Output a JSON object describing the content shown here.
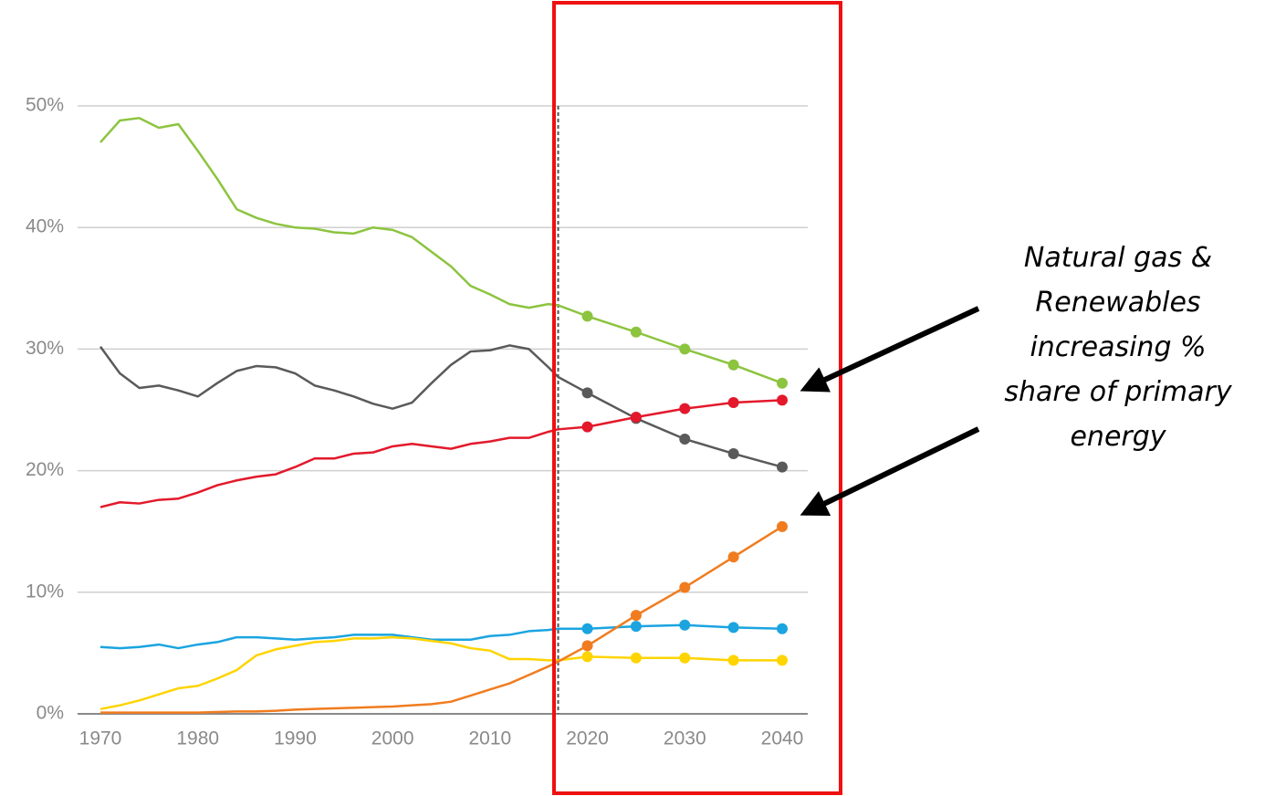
{
  "chart_data": {
    "type": "line",
    "x": [
      1970,
      1972,
      1974,
      1976,
      1978,
      1980,
      1982,
      1984,
      1986,
      1988,
      1990,
      1992,
      1994,
      1996,
      1998,
      2000,
      2002,
      2004,
      2006,
      2008,
      2010,
      2012,
      2014,
      2016,
      2017,
      2020,
      2025,
      2030,
      2035,
      2040
    ],
    "series": [
      {
        "color": "#8cc43f",
        "values": [
          47,
          48.8,
          49,
          48.2,
          48.5,
          46.3,
          44,
          41.5,
          40.8,
          40.3,
          40,
          39.9,
          39.6,
          39.5,
          40,
          39.8,
          39.2,
          38,
          36.8,
          35.2,
          34.5,
          33.7,
          33.4,
          33.7,
          33.6,
          32.7,
          31.4,
          30,
          28.7,
          27.2
        ]
      },
      {
        "color": "#5a5a5a",
        "values": [
          30.2,
          28,
          26.8,
          27,
          26.6,
          26.1,
          27.2,
          28.2,
          28.6,
          28.5,
          28,
          27,
          26.6,
          26.1,
          25.5,
          25.1,
          25.6,
          27.2,
          28.7,
          29.8,
          29.9,
          30.3,
          30,
          28.5,
          27.7,
          26.4,
          24.3,
          22.6,
          21.4,
          20.3
        ]
      },
      {
        "color": "#e3192b",
        "values": [
          17,
          17.4,
          17.3,
          17.6,
          17.7,
          18.2,
          18.8,
          19.2,
          19.5,
          19.7,
          20.3,
          21,
          21,
          21.4,
          21.5,
          22,
          22.2,
          22,
          21.8,
          22.2,
          22.4,
          22.7,
          22.7,
          23.2,
          23.4,
          23.6,
          24.4,
          25.1,
          25.6,
          25.8
        ]
      },
      {
        "color": "#1ba4e0",
        "values": [
          5.5,
          5.4,
          5.5,
          5.7,
          5.4,
          5.7,
          5.9,
          6.3,
          6.3,
          6.2,
          6.1,
          6.2,
          6.3,
          6.5,
          6.5,
          6.5,
          6.3,
          6.1,
          6.1,
          6.1,
          6.4,
          6.5,
          6.8,
          6.9,
          7.0,
          7.0,
          7.2,
          7.3,
          7.1,
          7.0
        ]
      },
      {
        "color": "#ffd400",
        "values": [
          0.4,
          0.7,
          1.1,
          1.6,
          2.1,
          2.3,
          2.9,
          3.6,
          4.8,
          5.3,
          5.6,
          5.9,
          6.0,
          6.2,
          6.2,
          6.3,
          6.2,
          6.0,
          5.8,
          5.4,
          5.2,
          4.5,
          4.5,
          4.4,
          4.4,
          4.7,
          4.6,
          4.6,
          4.4,
          4.4
        ]
      },
      {
        "color": "#f07c1f",
        "values": [
          0.1,
          0.1,
          0.1,
          0.1,
          0.1,
          0.1,
          0.15,
          0.2,
          0.2,
          0.25,
          0.35,
          0.4,
          0.45,
          0.5,
          0.55,
          0.6,
          0.7,
          0.8,
          1.0,
          1.5,
          2.0,
          2.5,
          3.2,
          3.9,
          4.3,
          5.6,
          8.1,
          10.4,
          12.9,
          15.4
        ]
      }
    ],
    "marker_start": 2020,
    "vline": 2017,
    "xlim": [
      1970,
      2040
    ],
    "xticks": [
      1970,
      1980,
      1990,
      2000,
      2010,
      2020,
      2030,
      2040
    ],
    "ylim": [
      0,
      50
    ],
    "yticks": [
      {
        "value": 0,
        "label": "0%"
      },
      {
        "value": 10,
        "label": "10%"
      },
      {
        "value": 20,
        "label": "20%"
      },
      {
        "value": 30,
        "label": "30%"
      },
      {
        "value": 40,
        "label": "40%"
      },
      {
        "value": 50,
        "label": "50%"
      }
    ],
    "grid": true,
    "annotation": [
      "Natural gas &",
      "Renewables",
      "increasing %",
      "share of primary",
      "energy"
    ]
  }
}
